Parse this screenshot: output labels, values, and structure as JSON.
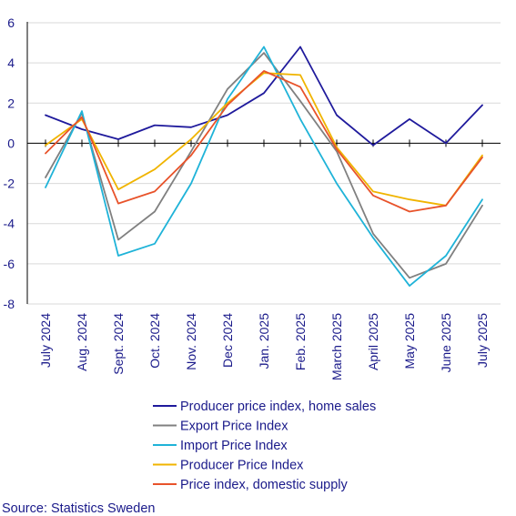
{
  "chart_data": {
    "type": "line",
    "title": "",
    "xlabel": "",
    "ylabel": "",
    "categories": [
      "July 2024",
      "Aug. 2024",
      "Sept. 2024",
      "Oct. 2024",
      "Nov. 2024",
      "Dec 2024",
      "Jan. 2025",
      "Feb. 2025",
      "March 2025",
      "April 2025",
      "May 2025",
      "June 2025",
      "July 2025"
    ],
    "ylim": [
      -8,
      6
    ],
    "yticks": [
      -8,
      -6,
      -4,
      -2,
      0,
      2,
      4,
      6
    ],
    "grid": "horizontal",
    "legend_position": "bottom",
    "series": [
      {
        "name": "Producer price index, home sales",
        "color": "#1f1a9c",
        "values": [
          1.4,
          0.7,
          0.2,
          0.9,
          0.8,
          1.4,
          2.5,
          4.8,
          1.4,
          -0.1,
          1.2,
          0.0,
          1.9
        ]
      },
      {
        "name": "Export Price Index",
        "color": "#808080",
        "values": [
          -1.7,
          1.5,
          -4.8,
          -3.4,
          -0.4,
          2.7,
          4.5,
          2.1,
          -0.4,
          -4.5,
          -6.7,
          -6.0,
          -3.1
        ]
      },
      {
        "name": "Import Price Index",
        "color": "#1fb3d8",
        "values": [
          -2.2,
          1.6,
          -5.6,
          -5.0,
          -2.0,
          2.2,
          4.8,
          1.2,
          -2.0,
          -4.7,
          -7.1,
          -5.6,
          -2.8
        ]
      },
      {
        "name": "Producer Price Index",
        "color": "#f0b400",
        "values": [
          -0.1,
          1.2,
          -2.3,
          -1.3,
          0.2,
          2.0,
          3.5,
          3.4,
          -0.2,
          -2.4,
          -2.8,
          -3.1,
          -0.6
        ]
      },
      {
        "name": "Price index, domestic supply",
        "color": "#e8532b",
        "values": [
          -0.5,
          1.3,
          -3.0,
          -2.4,
          -0.6,
          1.9,
          3.6,
          2.8,
          -0.3,
          -2.6,
          -3.4,
          -3.1,
          -0.7
        ]
      }
    ]
  },
  "source": "Source: Statistics Sweden"
}
